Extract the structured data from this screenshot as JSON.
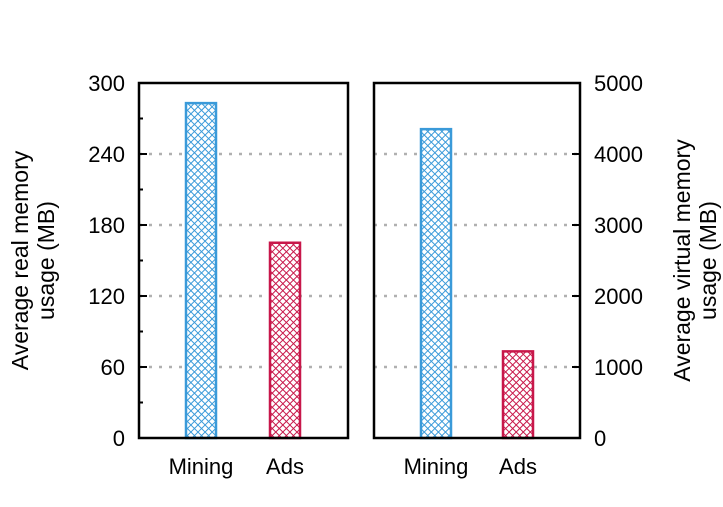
{
  "chart_data": [
    {
      "type": "bar",
      "categories": [
        "Mining",
        "Ads"
      ],
      "values": [
        283,
        165
      ],
      "colors": [
        "#3a9ad9",
        "#c8174a"
      ],
      "pattern": "crosshatch",
      "ylabel": "Average real memory usage (MB)",
      "ylabel_lines": [
        "Average real memory",
        "usage (MB)"
      ],
      "ylim": [
        0,
        300
      ],
      "yticks": [
        0,
        60,
        120,
        180,
        240,
        300
      ],
      "ytick_labels": [
        "0",
        "60",
        "120",
        "180",
        "240",
        "300"
      ],
      "axis_side": "left",
      "grid": true
    },
    {
      "type": "bar",
      "categories": [
        "Mining",
        "Ads"
      ],
      "values": [
        4350,
        1220
      ],
      "colors": [
        "#3a9ad9",
        "#c8174a"
      ],
      "pattern": "crosshatch",
      "ylabel": "Average virtual memory usage (MB)",
      "ylabel_lines": [
        "Average virtual memory",
        "usage (MB)"
      ],
      "ylim": [
        0,
        5000
      ],
      "yticks": [
        0,
        1000,
        2000,
        3000,
        4000,
        5000
      ],
      "ytick_labels": [
        "0",
        "1000",
        "2000",
        "3000",
        "4000",
        "5000"
      ],
      "axis_side": "right",
      "grid": true
    }
  ]
}
